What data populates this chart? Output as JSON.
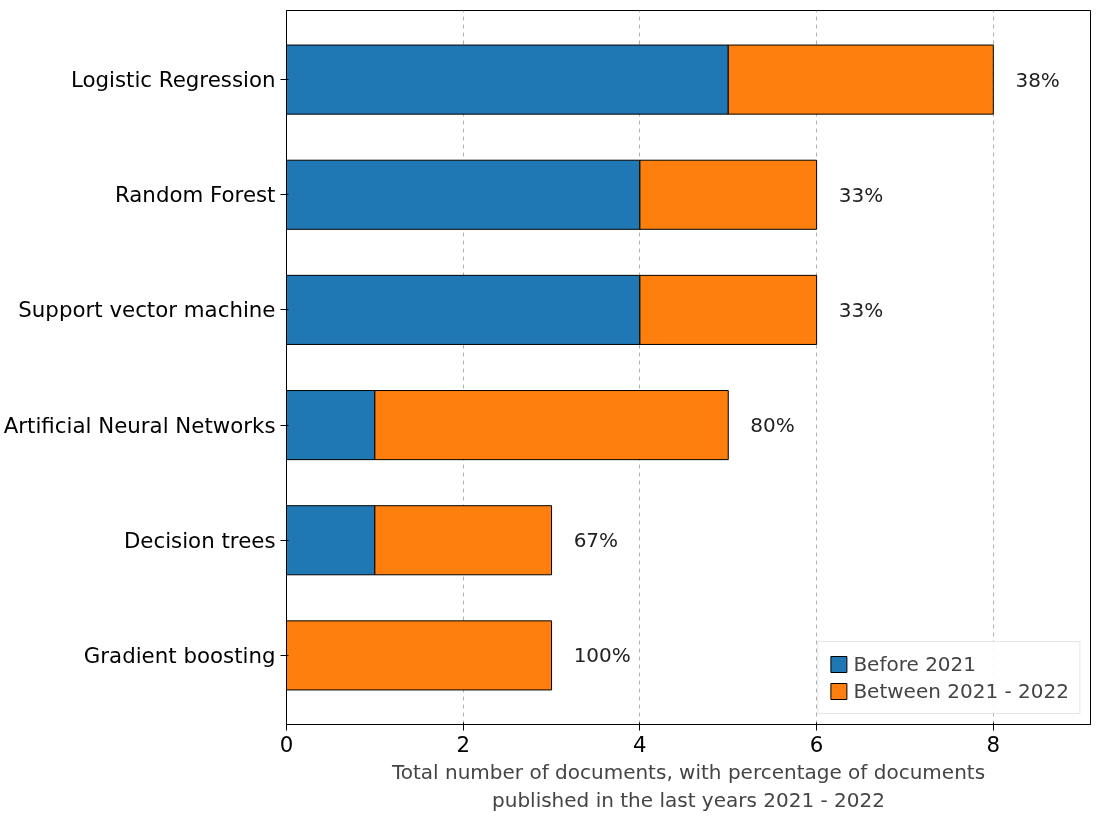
{
  "chart_data": {
    "type": "bar",
    "orientation": "horizontal",
    "stacked": true,
    "categories": [
      "Logistic Regression",
      "Random Forest",
      "Support vector machine",
      "Artificial Neural Networks",
      "Decision trees",
      "Gradient boosting"
    ],
    "series": [
      {
        "name": "Before 2021",
        "color": "#1f77b4",
        "values": [
          5,
          4,
          4,
          1,
          1,
          0
        ]
      },
      {
        "name": "Between 2021 - 2022",
        "color": "#ff7f0e",
        "values": [
          3,
          2,
          2,
          4,
          2,
          3
        ]
      }
    ],
    "annotations": [
      {
        "text": "38%",
        "x": 8,
        "y": "Logistic Regression"
      },
      {
        "text": "33%",
        "x": 6,
        "y": "Random Forest"
      },
      {
        "text": "33%",
        "x": 6,
        "y": "Support vector machine"
      },
      {
        "text": "80%",
        "x": 5,
        "y": "Artificial Neural Networks"
      },
      {
        "text": "67%",
        "x": 3,
        "y": "Decision trees"
      },
      {
        "text": "100%",
        "x": 3,
        "y": "Gradient boosting"
      }
    ],
    "xlabel": "Total number of documents, with percentage of documents\npublished in the last years 2021 - 2022",
    "xlim": [
      0,
      9.1
    ],
    "xticks": [
      0,
      2,
      4,
      6,
      8
    ],
    "grid": "x",
    "legend": "bottom right"
  }
}
